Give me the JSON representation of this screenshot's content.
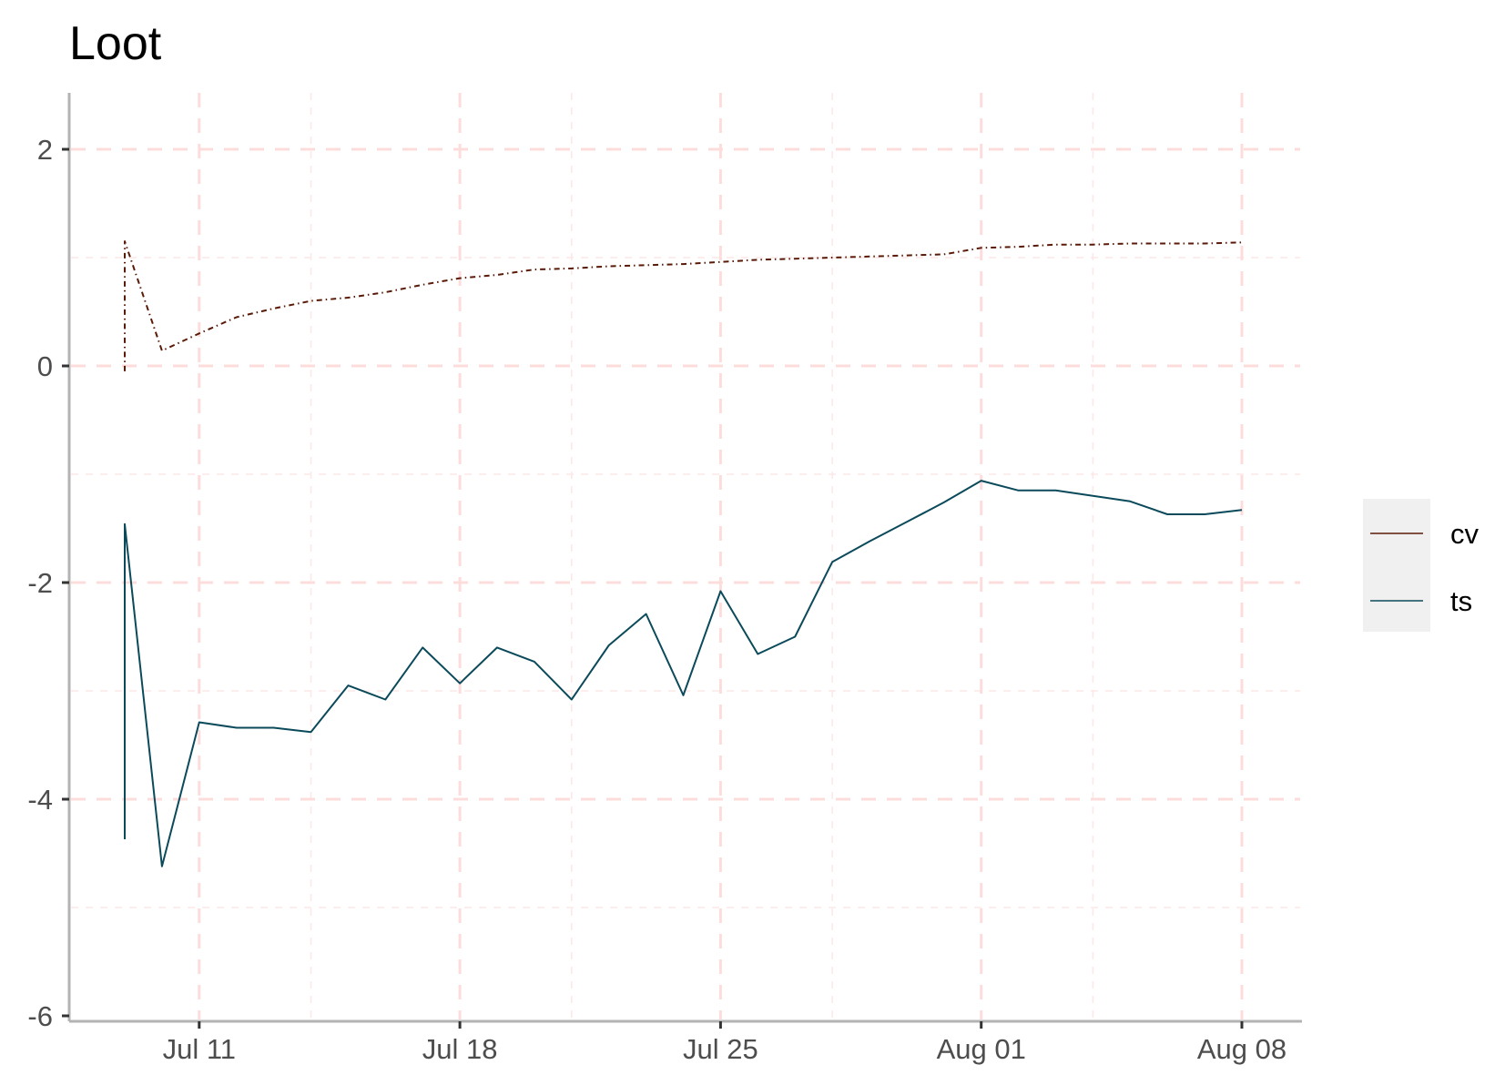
{
  "chart_data": {
    "type": "line",
    "title": "Loot",
    "xlabel": "",
    "ylabel": "",
    "x_type": "date",
    "xlim": [
      "2024-07-08",
      "2024-08-09"
    ],
    "ylim": [
      -6,
      2.5
    ],
    "y_ticks": [
      2,
      0,
      -2,
      -4,
      -6
    ],
    "y_minor_ticks": [
      1,
      -1,
      -3,
      -5
    ],
    "x_ticks": [
      {
        "date": "2024-07-11",
        "label": "Jul 11"
      },
      {
        "date": "2024-07-18",
        "label": "Jul 18"
      },
      {
        "date": "2024-07-25",
        "label": "Jul 25"
      },
      {
        "date": "2024-08-01",
        "label": "Aug 01"
      },
      {
        "date": "2024-08-08",
        "label": "Aug 08"
      }
    ],
    "x_minor_ticks": [
      "2024-07-14",
      "2024-07-21",
      "2024-07-28",
      "2024-08-04"
    ],
    "grid": true,
    "legend_position": "right",
    "series": [
      {
        "name": "cv",
        "color": "#5a1a08",
        "dash": "dotdash",
        "x": [
          "2024-07-09",
          "2024-07-09",
          "2024-07-10",
          "2024-07-11",
          "2024-07-12",
          "2024-07-13",
          "2024-07-14",
          "2024-07-15",
          "2024-07-16",
          "2024-07-17",
          "2024-07-18",
          "2024-07-19",
          "2024-07-20",
          "2024-07-21",
          "2024-07-22",
          "2024-07-23",
          "2024-07-24",
          "2024-07-25",
          "2024-07-26",
          "2024-07-27",
          "2024-07-28",
          "2024-07-29",
          "2024-07-30",
          "2024-07-31",
          "2024-08-01",
          "2024-08-02",
          "2024-08-03",
          "2024-08-04",
          "2024-08-05",
          "2024-08-06",
          "2024-08-07",
          "2024-08-08"
        ],
        "values": [
          -0.05,
          1.15,
          0.14,
          0.3,
          0.45,
          0.53,
          0.6,
          0.63,
          0.68,
          0.75,
          0.81,
          0.84,
          0.89,
          0.9,
          0.92,
          0.93,
          0.94,
          0.96,
          0.98,
          0.99,
          1.0,
          1.01,
          1.02,
          1.03,
          1.09,
          1.1,
          1.12,
          1.12,
          1.13,
          1.13,
          1.13,
          1.14
        ]
      },
      {
        "name": "ts",
        "color": "#0b4a5a",
        "dash": "solid",
        "x": [
          "2024-07-09",
          "2024-07-09",
          "2024-07-10",
          "2024-07-11",
          "2024-07-12",
          "2024-07-13",
          "2024-07-14",
          "2024-07-15",
          "2024-07-16",
          "2024-07-17",
          "2024-07-18",
          "2024-07-19",
          "2024-07-20",
          "2024-07-21",
          "2024-07-22",
          "2024-07-23",
          "2024-07-24",
          "2024-07-25",
          "2024-07-26",
          "2024-07-27",
          "2024-07-28",
          "2024-07-29",
          "2024-07-30",
          "2024-07-31",
          "2024-08-01",
          "2024-08-02",
          "2024-08-03",
          "2024-08-04",
          "2024-08-05",
          "2024-08-06",
          "2024-08-07",
          "2024-08-08"
        ],
        "values": [
          -4.37,
          -1.46,
          -4.62,
          -3.29,
          -3.34,
          -3.34,
          -3.38,
          -2.95,
          -3.08,
          -2.6,
          -2.93,
          -2.6,
          -2.73,
          -3.08,
          -2.58,
          -2.29,
          -3.04,
          -2.08,
          -2.66,
          -2.5,
          -1.81,
          -1.62,
          -1.44,
          -1.26,
          -1.06,
          -1.15,
          -1.15,
          -1.2,
          -1.25,
          -1.37,
          -1.37,
          -1.33
        ]
      }
    ]
  }
}
